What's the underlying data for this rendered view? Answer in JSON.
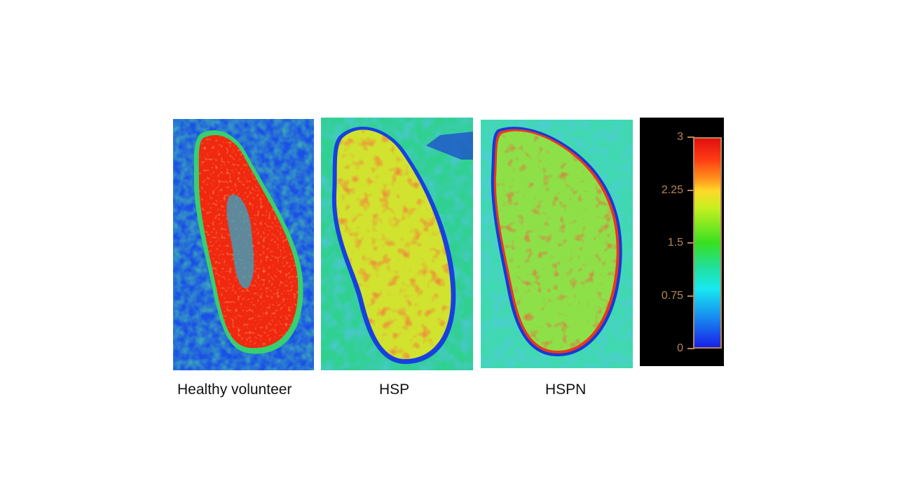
{
  "panels": [
    {
      "caption": "Healthy volunteer",
      "image": "kidney-parametric-map-healthy"
    },
    {
      "caption": "HSP",
      "image": "kidney-parametric-map-hsp"
    },
    {
      "caption": "HSPN",
      "image": "kidney-parametric-map-hspn"
    }
  ],
  "colorbar": {
    "ticks": [
      "3",
      "2.25",
      "1.5",
      "0.75",
      "0"
    ],
    "range": [
      0,
      3
    ],
    "colors": [
      "#1820e8",
      "#18e8f0",
      "#38e020",
      "#ffd82a",
      "#e01010"
    ],
    "label_color": "#b8865a"
  }
}
